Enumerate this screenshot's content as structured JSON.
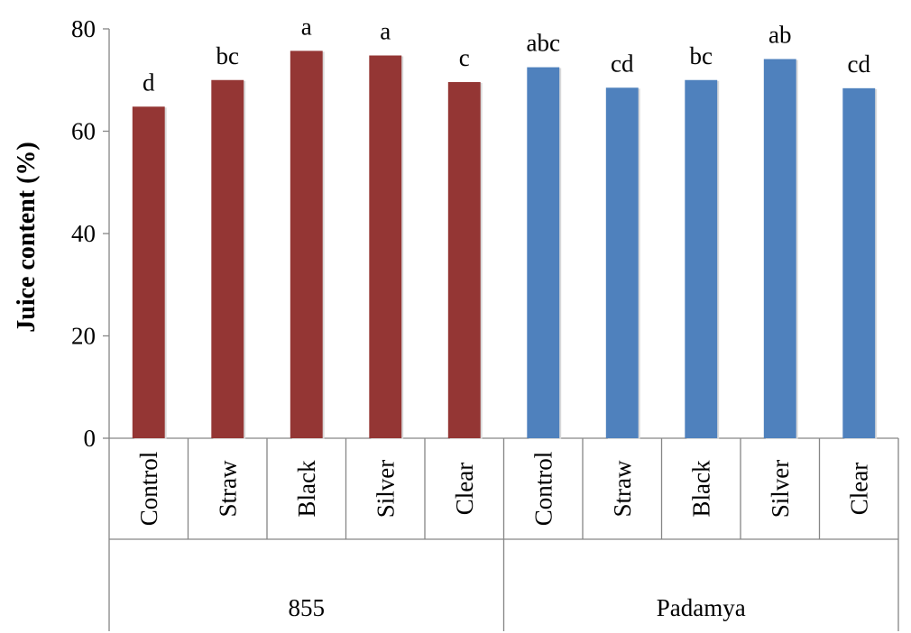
{
  "chart_data": {
    "type": "bar",
    "title": "",
    "xlabel": "",
    "ylabel": "Juice content (%)",
    "ylim": [
      0,
      80
    ],
    "yticks": [
      0,
      20,
      40,
      60,
      80
    ],
    "grid": false,
    "legend": "none",
    "groups": [
      {
        "name": "855",
        "color": "#943634",
        "categories": [
          "Control",
          "Straw",
          "Black",
          "Silver",
          "Clear"
        ],
        "values": [
          64.8,
          70.0,
          75.7,
          74.8,
          69.6
        ],
        "labels": [
          "d",
          "bc",
          "a",
          "a",
          "c"
        ]
      },
      {
        "name": "Padamya",
        "color": "#4F81BD",
        "categories": [
          "Control",
          "Straw",
          "Black",
          "Silver",
          "Clear"
        ],
        "values": [
          72.5,
          68.5,
          70.0,
          74.1,
          68.4
        ],
        "labels": [
          "abc",
          "cd",
          "bc",
          "ab",
          "cd"
        ]
      }
    ]
  }
}
